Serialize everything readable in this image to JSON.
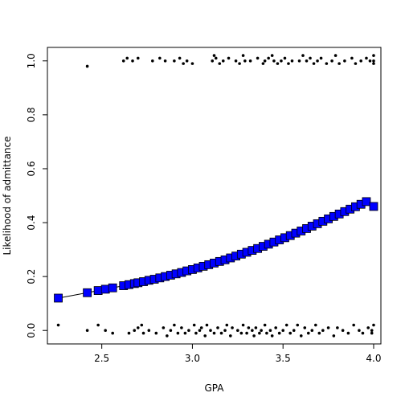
{
  "chart_data": {
    "type": "scatter",
    "title": "",
    "xlabel": "GPA",
    "ylabel": "Likelihood of admittance",
    "xlim": [
      2.2,
      4.04
    ],
    "ylim": [
      -0.05,
      1.05
    ],
    "x_ticks": [
      2.5,
      3.0,
      3.5,
      4.0
    ],
    "x_tick_labels": [
      "2.5",
      "3.0",
      "3.5",
      "4.0"
    ],
    "y_ticks": [
      0.0,
      0.2,
      0.4,
      0.6,
      0.8,
      1.0
    ],
    "y_tick_labels": [
      "0.0",
      "0.2",
      "0.4",
      "0.6",
      "0.8",
      "1.0"
    ],
    "grid": false,
    "colors": {
      "points": "#000000",
      "fitted_fill": "#0000ff",
      "fitted_stroke": "#000000",
      "line": "#000000"
    },
    "series": [
      {
        "kind": "jittered-points",
        "points": [
          {
            "x": 2.26,
            "y": 0.02
          },
          {
            "x": 2.42,
            "y": 0.98
          },
          {
            "x": 2.42,
            "y": 0.0
          },
          {
            "x": 2.48,
            "y": 0.02
          },
          {
            "x": 2.52,
            "y": 0.0
          },
          {
            "x": 2.56,
            "y": -0.01
          },
          {
            "x": 2.62,
            "y": 1.0
          },
          {
            "x": 2.64,
            "y": 1.01
          },
          {
            "x": 2.65,
            "y": -0.01
          },
          {
            "x": 2.67,
            "y": 1.0
          },
          {
            "x": 2.68,
            "y": 0.0
          },
          {
            "x": 2.7,
            "y": 1.01
          },
          {
            "x": 2.7,
            "y": 0.01
          },
          {
            "x": 2.72,
            "y": 0.02
          },
          {
            "x": 2.73,
            "y": -0.01
          },
          {
            "x": 2.76,
            "y": 0.0
          },
          {
            "x": 2.78,
            "y": 1.0
          },
          {
            "x": 2.8,
            "y": -0.01
          },
          {
            "x": 2.82,
            "y": 1.01
          },
          {
            "x": 2.84,
            "y": 0.01
          },
          {
            "x": 2.85,
            "y": 1.0
          },
          {
            "x": 2.86,
            "y": -0.02
          },
          {
            "x": 2.88,
            "y": 0.0
          },
          {
            "x": 2.9,
            "y": 1.0
          },
          {
            "x": 2.9,
            "y": 0.02
          },
          {
            "x": 2.92,
            "y": -0.01
          },
          {
            "x": 2.93,
            "y": 1.01
          },
          {
            "x": 2.94,
            "y": 0.01
          },
          {
            "x": 2.95,
            "y": 0.99
          },
          {
            "x": 2.96,
            "y": -0.01
          },
          {
            "x": 2.97,
            "y": 1.0
          },
          {
            "x": 2.98,
            "y": 0.0
          },
          {
            "x": 3.0,
            "y": 0.99
          },
          {
            "x": 3.01,
            "y": 0.02
          },
          {
            "x": 3.02,
            "y": -0.01
          },
          {
            "x": 3.04,
            "y": 0.0
          },
          {
            "x": 3.05,
            "y": 0.01
          },
          {
            "x": 3.07,
            "y": -0.02
          },
          {
            "x": 3.08,
            "y": 0.02
          },
          {
            "x": 3.1,
            "y": 0.0
          },
          {
            "x": 3.11,
            "y": 1.0
          },
          {
            "x": 3.12,
            "y": 1.02
          },
          {
            "x": 3.12,
            "y": -0.01
          },
          {
            "x": 3.13,
            "y": 1.01
          },
          {
            "x": 3.14,
            "y": 0.01
          },
          {
            "x": 3.15,
            "y": 0.99
          },
          {
            "x": 3.16,
            "y": -0.01
          },
          {
            "x": 3.17,
            "y": 1.0
          },
          {
            "x": 3.18,
            "y": 0.0
          },
          {
            "x": 3.19,
            "y": 0.02
          },
          {
            "x": 3.2,
            "y": 1.01
          },
          {
            "x": 3.21,
            "y": -0.02
          },
          {
            "x": 3.22,
            "y": 0.01
          },
          {
            "x": 3.24,
            "y": 1.0
          },
          {
            "x": 3.25,
            "y": 0.0
          },
          {
            "x": 3.26,
            "y": 0.99
          },
          {
            "x": 3.27,
            "y": -0.01
          },
          {
            "x": 3.28,
            "y": 1.02
          },
          {
            "x": 3.28,
            "y": 0.02
          },
          {
            "x": 3.29,
            "y": 1.0
          },
          {
            "x": 3.3,
            "y": -0.01
          },
          {
            "x": 3.31,
            "y": 0.01
          },
          {
            "x": 3.32,
            "y": 1.0
          },
          {
            "x": 3.33,
            "y": 0.0
          },
          {
            "x": 3.34,
            "y": -0.02
          },
          {
            "x": 3.35,
            "y": 0.01
          },
          {
            "x": 3.36,
            "y": 1.01
          },
          {
            "x": 3.37,
            "y": -0.01
          },
          {
            "x": 3.38,
            "y": 0.0
          },
          {
            "x": 3.39,
            "y": 0.99
          },
          {
            "x": 3.4,
            "y": 1.0
          },
          {
            "x": 3.4,
            "y": 0.02
          },
          {
            "x": 3.41,
            "y": -0.01
          },
          {
            "x": 3.42,
            "y": 1.01
          },
          {
            "x": 3.43,
            "y": 0.0
          },
          {
            "x": 3.44,
            "y": 1.02
          },
          {
            "x": 3.44,
            "y": -0.02
          },
          {
            "x": 3.45,
            "y": 1.0
          },
          {
            "x": 3.46,
            "y": 0.01
          },
          {
            "x": 3.47,
            "y": 0.99
          },
          {
            "x": 3.48,
            "y": -0.01
          },
          {
            "x": 3.49,
            "y": 1.0
          },
          {
            "x": 3.5,
            "y": 0.0
          },
          {
            "x": 3.51,
            "y": 1.01
          },
          {
            "x": 3.52,
            "y": 0.02
          },
          {
            "x": 3.53,
            "y": 0.99
          },
          {
            "x": 3.54,
            "y": -0.01
          },
          {
            "x": 3.55,
            "y": 1.0
          },
          {
            "x": 3.56,
            "y": 0.0
          },
          {
            "x": 3.58,
            "y": 0.02
          },
          {
            "x": 3.59,
            "y": 1.0
          },
          {
            "x": 3.6,
            "y": -0.02
          },
          {
            "x": 3.61,
            "y": 1.02
          },
          {
            "x": 3.62,
            "y": 0.01
          },
          {
            "x": 3.63,
            "y": 1.0
          },
          {
            "x": 3.64,
            "y": -0.01
          },
          {
            "x": 3.65,
            "y": 1.01
          },
          {
            "x": 3.66,
            "y": 0.0
          },
          {
            "x": 3.67,
            "y": 0.99
          },
          {
            "x": 3.68,
            "y": 0.02
          },
          {
            "x": 3.69,
            "y": 1.0
          },
          {
            "x": 3.7,
            "y": -0.01
          },
          {
            "x": 3.71,
            "y": 1.01
          },
          {
            "x": 3.72,
            "y": 0.0
          },
          {
            "x": 3.74,
            "y": 0.99
          },
          {
            "x": 3.75,
            "y": 0.01
          },
          {
            "x": 3.77,
            "y": 1.0
          },
          {
            "x": 3.78,
            "y": -0.02
          },
          {
            "x": 3.79,
            "y": 1.02
          },
          {
            "x": 3.8,
            "y": 0.01
          },
          {
            "x": 3.81,
            "y": 0.99
          },
          {
            "x": 3.83,
            "y": 0.0
          },
          {
            "x": 3.84,
            "y": 1.0
          },
          {
            "x": 3.86,
            "y": -0.01
          },
          {
            "x": 3.88,
            "y": 1.01
          },
          {
            "x": 3.89,
            "y": 0.02
          },
          {
            "x": 3.9,
            "y": 0.99
          },
          {
            "x": 3.92,
            "y": 0.0
          },
          {
            "x": 3.93,
            "y": 1.0
          },
          {
            "x": 3.94,
            "y": -0.01
          },
          {
            "x": 3.96,
            "y": 1.01
          },
          {
            "x": 3.97,
            "y": 0.01
          },
          {
            "x": 3.98,
            "y": 1.0
          },
          {
            "x": 3.99,
            "y": 0.0
          },
          {
            "x": 4.0,
            "y": 1.02
          },
          {
            "x": 4.0,
            "y": 0.99
          },
          {
            "x": 4.0,
            "y": 0.02
          },
          {
            "x": 3.99,
            "y": -0.01
          },
          {
            "x": 4.0,
            "y": 1.0
          }
        ]
      },
      {
        "kind": "fitted-probability",
        "points": [
          {
            "x": 2.26,
            "y": 0.12
          },
          {
            "x": 2.42,
            "y": 0.14
          },
          {
            "x": 2.48,
            "y": 0.148
          },
          {
            "x": 2.52,
            "y": 0.153
          },
          {
            "x": 2.56,
            "y": 0.158
          },
          {
            "x": 2.62,
            "y": 0.166
          },
          {
            "x": 2.65,
            "y": 0.17
          },
          {
            "x": 2.68,
            "y": 0.174
          },
          {
            "x": 2.7,
            "y": 0.177
          },
          {
            "x": 2.73,
            "y": 0.181
          },
          {
            "x": 2.76,
            "y": 0.186
          },
          {
            "x": 2.79,
            "y": 0.19
          },
          {
            "x": 2.82,
            "y": 0.195
          },
          {
            "x": 2.85,
            "y": 0.2
          },
          {
            "x": 2.88,
            "y": 0.205
          },
          {
            "x": 2.91,
            "y": 0.21
          },
          {
            "x": 2.94,
            "y": 0.215
          },
          {
            "x": 2.97,
            "y": 0.221
          },
          {
            "x": 3.0,
            "y": 0.226
          },
          {
            "x": 3.03,
            "y": 0.232
          },
          {
            "x": 3.06,
            "y": 0.238
          },
          {
            "x": 3.09,
            "y": 0.244
          },
          {
            "x": 3.12,
            "y": 0.25
          },
          {
            "x": 3.15,
            "y": 0.256
          },
          {
            "x": 3.18,
            "y": 0.262
          },
          {
            "x": 3.21,
            "y": 0.269
          },
          {
            "x": 3.24,
            "y": 0.276
          },
          {
            "x": 3.27,
            "y": 0.283
          },
          {
            "x": 3.3,
            "y": 0.29
          },
          {
            "x": 3.33,
            "y": 0.297
          },
          {
            "x": 3.36,
            "y": 0.304
          },
          {
            "x": 3.39,
            "y": 0.312
          },
          {
            "x": 3.42,
            "y": 0.32
          },
          {
            "x": 3.45,
            "y": 0.328
          },
          {
            "x": 3.48,
            "y": 0.336
          },
          {
            "x": 3.51,
            "y": 0.344
          },
          {
            "x": 3.54,
            "y": 0.352
          },
          {
            "x": 3.57,
            "y": 0.361
          },
          {
            "x": 3.6,
            "y": 0.369
          },
          {
            "x": 3.63,
            "y": 0.378
          },
          {
            "x": 3.66,
            "y": 0.387
          },
          {
            "x": 3.69,
            "y": 0.396
          },
          {
            "x": 3.72,
            "y": 0.405
          },
          {
            "x": 3.75,
            "y": 0.414
          },
          {
            "x": 3.78,
            "y": 0.423
          },
          {
            "x": 3.81,
            "y": 0.432
          },
          {
            "x": 3.84,
            "y": 0.441
          },
          {
            "x": 3.87,
            "y": 0.45
          },
          {
            "x": 3.9,
            "y": 0.459
          },
          {
            "x": 3.93,
            "y": 0.468
          },
          {
            "x": 3.96,
            "y": 0.478
          },
          {
            "x": 4.0,
            "y": 0.46
          }
        ]
      }
    ]
  }
}
